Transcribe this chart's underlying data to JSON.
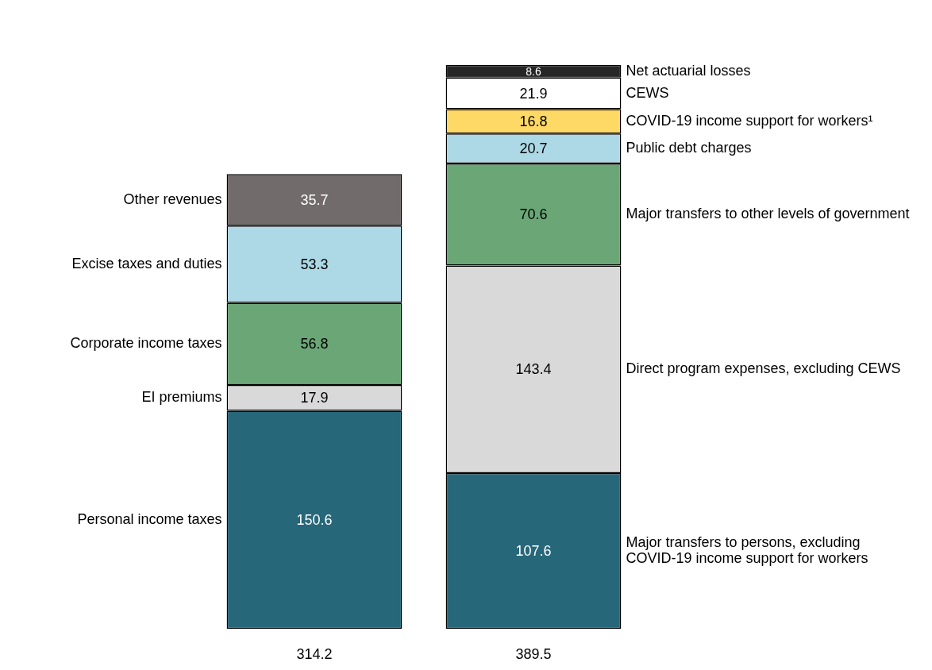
{
  "chart_data": {
    "type": "bar",
    "stacked": true,
    "categories": [
      null,
      null
    ],
    "totals": [
      "314.2",
      "389.5"
    ],
    "data_labels": true,
    "grid": false,
    "legend": false,
    "series": [
      {
        "name": "Personal income taxes",
        "color": "#27677a",
        "values": [
          150.6,
          null
        ]
      },
      {
        "name": "EI premiums",
        "color": "#d9d9d9",
        "values": [
          17.9,
          null
        ]
      },
      {
        "name": "Corporate income taxes",
        "color": "#6aa676",
        "values": [
          56.8,
          null
        ]
      },
      {
        "name": "Excise taxes and duties",
        "color": "#add8e6",
        "values": [
          53.3,
          null
        ]
      },
      {
        "name": "Other revenues",
        "color": "#716c6b",
        "values": [
          35.7,
          null
        ]
      },
      {
        "name": "Major transfers to persons, excluding COVID-19 income support for workers",
        "color": "#27677a",
        "values": [
          null,
          107.6
        ]
      },
      {
        "name": "Direct program expenses, excluding CEWS",
        "color": "#d9d9d9",
        "values": [
          null,
          143.4
        ]
      },
      {
        "name": "Major transfers to other levels of government",
        "color": "#6aa676",
        "values": [
          null,
          70.6
        ]
      },
      {
        "name": "Public debt charges",
        "color": "#add8e6",
        "values": [
          null,
          20.7
        ]
      },
      {
        "name": "COVID-19 income support for workers¹",
        "color": "#ffd966",
        "values": [
          null,
          16.8
        ]
      },
      {
        "name": "CEWS",
        "color": "#ffffff",
        "values": [
          null,
          21.9
        ]
      },
      {
        "name": "Net actuarial losses",
        "color": "#262626",
        "values": [
          null,
          8.6
        ]
      }
    ]
  }
}
